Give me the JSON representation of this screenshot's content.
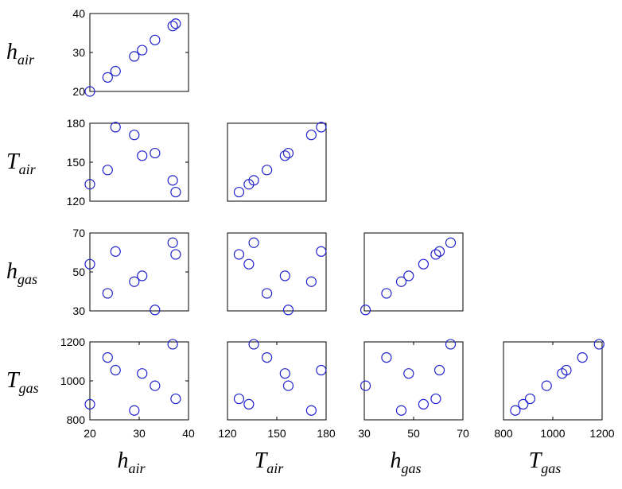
{
  "chart_data": {
    "type": "scatter",
    "title": "",
    "variables": [
      {
        "key": "h_air",
        "symbol": "h",
        "subscript": "air",
        "range": [
          20,
          40
        ],
        "ticks": [
          20,
          30,
          40
        ]
      },
      {
        "key": "T_air",
        "symbol": "T",
        "subscript": "air",
        "range": [
          120,
          180
        ],
        "ticks": [
          120,
          150,
          180
        ]
      },
      {
        "key": "h_gas",
        "symbol": "h",
        "subscript": "gas",
        "range": [
          30,
          70
        ],
        "ticks": [
          30,
          50,
          70
        ]
      },
      {
        "key": "T_gas",
        "symbol": "T",
        "subscript": "gas",
        "range": [
          800,
          1200
        ],
        "ticks": [
          800,
          1000,
          1200
        ]
      }
    ],
    "observations": [
      {
        "h_air": 20.0,
        "T_air": 133,
        "h_gas": 54,
        "T_gas": 880
      },
      {
        "h_air": 23.6,
        "T_air": 144,
        "h_gas": 39,
        "T_gas": 1120
      },
      {
        "h_air": 25.2,
        "T_air": 177,
        "h_gas": 60.5,
        "T_gas": 1055
      },
      {
        "h_air": 29.0,
        "T_air": 171,
        "h_gas": 45,
        "T_gas": 848
      },
      {
        "h_air": 30.6,
        "T_air": 155,
        "h_gas": 48,
        "T_gas": 1038
      },
      {
        "h_air": 33.2,
        "T_air": 157,
        "h_gas": 30.5,
        "T_gas": 975
      },
      {
        "h_air": 36.8,
        "T_air": 136,
        "h_gas": 65,
        "T_gas": 1188
      },
      {
        "h_air": 37.4,
        "T_air": 127,
        "h_gas": 59,
        "T_gas": 908
      }
    ],
    "grid": false,
    "legend": "none",
    "marker": "circle",
    "marker_color": "#2222cc"
  }
}
